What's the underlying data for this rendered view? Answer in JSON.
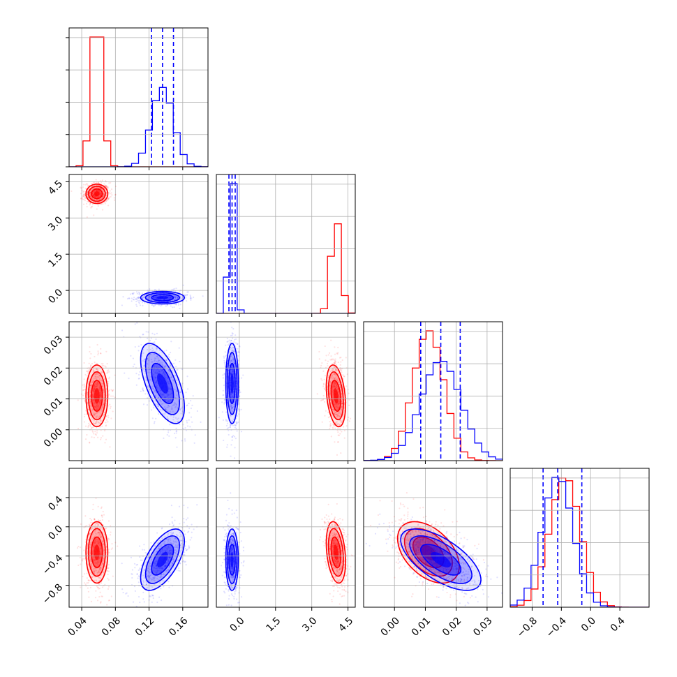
{
  "chart_data": {
    "type": "corner",
    "grid": true,
    "parameters": [
      {
        "ticks": [
          0.04,
          0.08,
          0.12,
          0.16
        ],
        "tick_labels": [
          "0.04",
          "0.08",
          "0.12",
          "0.16"
        ],
        "range": [
          0.025,
          0.19
        ]
      },
      {
        "ticks": [
          0.0,
          1.5,
          3.0,
          4.5
        ],
        "tick_labels": [
          "0.0",
          "1.5",
          "3.0",
          "4.5"
        ],
        "range": [
          -0.95,
          4.8
        ]
      },
      {
        "ticks": [
          0.0,
          0.01,
          0.02,
          0.03
        ],
        "tick_labels": [
          "0.00",
          "0.01",
          "0.02",
          "0.03"
        ],
        "range": [
          -0.01,
          0.035
        ]
      },
      {
        "ticks": [
          -0.8,
          -0.4,
          0.0,
          0.4
        ],
        "tick_labels": [
          "−0.8",
          "−0.4",
          "0.0",
          "0.4"
        ],
        "range": [
          -1.1,
          0.8
        ]
      }
    ],
    "series": [
      {
        "color": "#ff0000",
        "means": [
          0.058,
          4.0,
          0.011,
          -0.35
        ],
        "sigmas": [
          0.0065,
          0.2,
          0.005,
          0.21
        ],
        "correlations": {
          "0-1": 0.0,
          "0-2": 0.0,
          "0-3": 0.0,
          "1-2": -0.3,
          "1-3": -0.3,
          "2-3": -0.45
        },
        "quantiles": null
      },
      {
        "color": "#0000ff",
        "means": [
          0.136,
          -0.3,
          0.015,
          -0.45
        ],
        "sigmas": [
          0.013,
          0.13,
          0.0065,
          0.21
        ],
        "correlations": {
          "0-1": 0.0,
          "0-2": -0.6,
          "0-3": 0.6,
          "1-2": 0.0,
          "1-3": 0.0,
          "2-3": -0.65
        },
        "quantiles": [
          [
            0.123,
            0.136,
            0.149
          ],
          [
            -0.43,
            -0.3,
            -0.17
          ],
          [
            0.0085,
            0.015,
            0.0213
          ],
          [
            -0.65,
            -0.45,
            -0.12
          ]
        ]
      }
    ]
  }
}
